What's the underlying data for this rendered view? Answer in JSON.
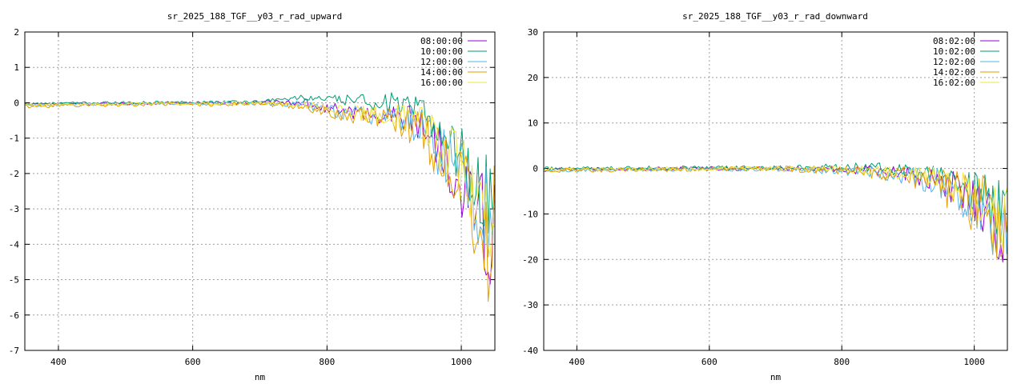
{
  "chart_data": [
    {
      "type": "line",
      "title": "sr_2025_188_TGF__y03_r_rad_upward",
      "xlabel": "nm",
      "ylabel": "",
      "xlim": [
        350,
        1050
      ],
      "ylim": [
        -7,
        2
      ],
      "xticks": [
        400,
        600,
        800,
        1000
      ],
      "yticks": [
        -7,
        -6,
        -5,
        -4,
        -3,
        -2,
        -1,
        0,
        1,
        2
      ],
      "grid": true,
      "legend": "top-right",
      "series": [
        {
          "name": "08:00:00",
          "color": "#9400d3",
          "anchors": [
            [
              350,
              -0.05
            ],
            [
              500,
              -0.02
            ],
            [
              700,
              0.0
            ],
            [
              760,
              0.03
            ],
            [
              800,
              -0.15
            ],
            [
              850,
              -0.3
            ],
            [
              900,
              -0.35
            ],
            [
              940,
              -0.6
            ],
            [
              960,
              -1.0
            ],
            [
              980,
              -1.6
            ],
            [
              1000,
              -2.2
            ],
            [
              1020,
              -2.8
            ],
            [
              1040,
              -3.8
            ],
            [
              1050,
              -3.5
            ]
          ],
          "amp": [
            [
              350,
              0.03
            ],
            [
              700,
              0.05
            ],
            [
              800,
              0.15
            ],
            [
              900,
              0.3
            ],
            [
              950,
              0.6
            ],
            [
              1000,
              1.0
            ],
            [
              1050,
              1.6
            ]
          ]
        },
        {
          "name": "10:00:00",
          "color": "#009e73",
          "anchors": [
            [
              350,
              -0.02
            ],
            [
              500,
              0.0
            ],
            [
              700,
              0.03
            ],
            [
              760,
              0.15
            ],
            [
              800,
              0.1
            ],
            [
              850,
              0.05
            ],
            [
              900,
              0.0
            ],
            [
              940,
              -0.3
            ],
            [
              960,
              -0.6
            ],
            [
              980,
              -1.0
            ],
            [
              1000,
              -1.5
            ],
            [
              1020,
              -2.2
            ],
            [
              1040,
              -2.8
            ],
            [
              1050,
              -2.2
            ]
          ],
          "amp": [
            [
              350,
              0.03
            ],
            [
              700,
              0.05
            ],
            [
              800,
              0.1
            ],
            [
              900,
              0.3
            ],
            [
              950,
              0.5
            ],
            [
              1000,
              0.9
            ],
            [
              1050,
              1.4
            ]
          ]
        },
        {
          "name": "12:00:00",
          "color": "#56b4e9",
          "anchors": [
            [
              350,
              -0.08
            ],
            [
              500,
              -0.03
            ],
            [
              700,
              -0.02
            ],
            [
              760,
              -0.05
            ],
            [
              800,
              -0.2
            ],
            [
              850,
              -0.35
            ],
            [
              900,
              -0.4
            ],
            [
              940,
              -0.7
            ],
            [
              960,
              -1.1
            ],
            [
              980,
              -1.6
            ],
            [
              1000,
              -2.0
            ],
            [
              1020,
              -2.6
            ],
            [
              1040,
              -3.2
            ],
            [
              1050,
              -3.0
            ]
          ],
          "amp": [
            [
              350,
              0.04
            ],
            [
              700,
              0.05
            ],
            [
              800,
              0.15
            ],
            [
              900,
              0.35
            ],
            [
              950,
              0.7
            ],
            [
              1000,
              1.2
            ],
            [
              1050,
              1.8
            ]
          ]
        },
        {
          "name": "14:00:00",
          "color": "#e69f00",
          "anchors": [
            [
              350,
              -0.1
            ],
            [
              500,
              -0.05
            ],
            [
              700,
              -0.03
            ],
            [
              760,
              -0.1
            ],
            [
              800,
              -0.25
            ],
            [
              850,
              -0.4
            ],
            [
              900,
              -0.45
            ],
            [
              940,
              -0.8
            ],
            [
              960,
              -1.2
            ],
            [
              980,
              -1.7
            ],
            [
              1000,
              -2.4
            ],
            [
              1020,
              -3.0
            ],
            [
              1040,
              -4.2
            ],
            [
              1050,
              -3.6
            ]
          ],
          "amp": [
            [
              350,
              0.05
            ],
            [
              700,
              0.06
            ],
            [
              800,
              0.15
            ],
            [
              900,
              0.35
            ],
            [
              950,
              0.7
            ],
            [
              1000,
              1.3
            ],
            [
              1050,
              2.2
            ]
          ]
        },
        {
          "name": "16:00:00",
          "color": "#f0e442",
          "anchors": [
            [
              350,
              -0.06
            ],
            [
              500,
              -0.03
            ],
            [
              700,
              -0.01
            ],
            [
              760,
              -0.05
            ],
            [
              800,
              -0.15
            ],
            [
              850,
              -0.3
            ],
            [
              900,
              -0.35
            ],
            [
              940,
              -0.6
            ],
            [
              960,
              -0.9
            ],
            [
              980,
              -1.4
            ],
            [
              1000,
              -1.9
            ],
            [
              1020,
              -2.4
            ],
            [
              1040,
              -3.0
            ],
            [
              1050,
              -2.8
            ]
          ],
          "amp": [
            [
              350,
              0.03
            ],
            [
              700,
              0.05
            ],
            [
              800,
              0.12
            ],
            [
              900,
              0.3
            ],
            [
              950,
              0.6
            ],
            [
              1000,
              1.0
            ],
            [
              1050,
              1.6
            ]
          ]
        }
      ]
    },
    {
      "type": "line",
      "title": "sr_2025_188_TGF__y03_r_rad_downward",
      "xlabel": "nm",
      "ylabel": "",
      "xlim": [
        350,
        1050
      ],
      "ylim": [
        -40,
        30
      ],
      "xticks": [
        400,
        600,
        800,
        1000
      ],
      "yticks": [
        -40,
        -30,
        -20,
        -10,
        0,
        10,
        20,
        30
      ],
      "grid": true,
      "legend": "top-right",
      "series": [
        {
          "name": "08:02:00",
          "color": "#9400d3",
          "anchors": [
            [
              350,
              -0.3
            ],
            [
              500,
              -0.1
            ],
            [
              700,
              0.0
            ],
            [
              800,
              -0.3
            ],
            [
              850,
              -0.6
            ],
            [
              900,
              -1.2
            ],
            [
              940,
              -2.5
            ],
            [
              960,
              -3.5
            ],
            [
              980,
              -5.0
            ],
            [
              1000,
              -6.5
            ],
            [
              1020,
              -9.0
            ],
            [
              1040,
              -14.0
            ],
            [
              1050,
              -12.0
            ]
          ],
          "amp": [
            [
              350,
              0.4
            ],
            [
              700,
              0.5
            ],
            [
              800,
              0.8
            ],
            [
              900,
              1.8
            ],
            [
              950,
              3.0
            ],
            [
              1000,
              5.0
            ],
            [
              1050,
              9.0
            ]
          ]
        },
        {
          "name": "10:02:00",
          "color": "#009e73",
          "anchors": [
            [
              350,
              0.0
            ],
            [
              500,
              0.1
            ],
            [
              700,
              0.1
            ],
            [
              800,
              0.3
            ],
            [
              850,
              0.2
            ],
            [
              900,
              -0.5
            ],
            [
              940,
              -1.5
            ],
            [
              960,
              -2.5
            ],
            [
              980,
              -3.5
            ],
            [
              1000,
              -5.0
            ],
            [
              1020,
              -7.0
            ],
            [
              1040,
              -10.0
            ],
            [
              1050,
              -9.0
            ]
          ],
          "amp": [
            [
              350,
              0.4
            ],
            [
              700,
              0.5
            ],
            [
              800,
              0.8
            ],
            [
              900,
              1.6
            ],
            [
              950,
              2.8
            ],
            [
              1000,
              4.5
            ],
            [
              1050,
              8.0
            ]
          ]
        },
        {
          "name": "12:02:00",
          "color": "#56b4e9",
          "anchors": [
            [
              350,
              -0.5
            ],
            [
              500,
              -0.2
            ],
            [
              700,
              -0.1
            ],
            [
              800,
              -0.5
            ],
            [
              850,
              -1.0
            ],
            [
              900,
              -1.6
            ],
            [
              940,
              -3.0
            ],
            [
              960,
              -4.0
            ],
            [
              980,
              -5.5
            ],
            [
              1000,
              -7.0
            ],
            [
              1020,
              -10.0
            ],
            [
              1040,
              -13.0
            ],
            [
              1050,
              -11.0
            ]
          ],
          "amp": [
            [
              350,
              0.4
            ],
            [
              700,
              0.5
            ],
            [
              800,
              0.9
            ],
            [
              900,
              2.0
            ],
            [
              950,
              3.5
            ],
            [
              1000,
              6.0
            ],
            [
              1050,
              10.0
            ]
          ]
        },
        {
          "name": "14:02:00",
          "color": "#e69f00",
          "anchors": [
            [
              350,
              -0.4
            ],
            [
              500,
              -0.2
            ],
            [
              700,
              0.0
            ],
            [
              800,
              -0.4
            ],
            [
              850,
              -0.9
            ],
            [
              900,
              -1.5
            ],
            [
              940,
              -3.0
            ],
            [
              960,
              -4.5
            ],
            [
              980,
              -6.5
            ],
            [
              1000,
              -8.0
            ],
            [
              1020,
              -11.0
            ],
            [
              1040,
              -15.0
            ],
            [
              1050,
              -13.0
            ]
          ],
          "amp": [
            [
              350,
              0.5
            ],
            [
              700,
              0.6
            ],
            [
              800,
              1.0
            ],
            [
              900,
              2.2
            ],
            [
              950,
              4.0
            ],
            [
              1000,
              7.0
            ],
            [
              1050,
              13.0
            ]
          ]
        },
        {
          "name": "16:02:00",
          "color": "#f0e442",
          "anchors": [
            [
              350,
              -0.2
            ],
            [
              500,
              -0.1
            ],
            [
              700,
              0.0
            ],
            [
              800,
              -0.2
            ],
            [
              850,
              -0.6
            ],
            [
              900,
              -1.0
            ],
            [
              940,
              -2.0
            ],
            [
              960,
              -3.0
            ],
            [
              980,
              -4.5
            ],
            [
              1000,
              -6.0
            ],
            [
              1020,
              -8.0
            ],
            [
              1040,
              -11.0
            ],
            [
              1050,
              -10.0
            ]
          ],
          "amp": [
            [
              350,
              0.4
            ],
            [
              700,
              0.5
            ],
            [
              800,
              0.8
            ],
            [
              900,
              1.6
            ],
            [
              950,
              3.0
            ],
            [
              1000,
              5.0
            ],
            [
              1050,
              9.0
            ]
          ]
        }
      ]
    }
  ]
}
